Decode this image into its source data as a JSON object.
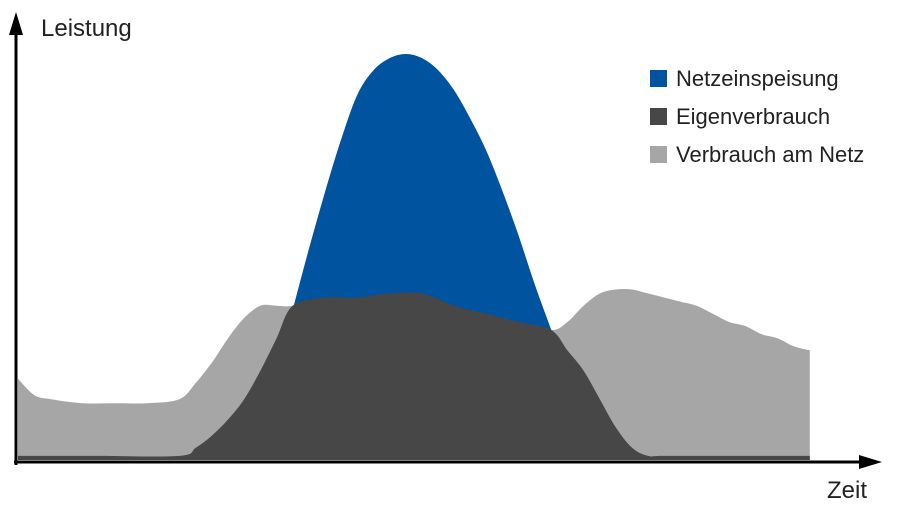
{
  "chart_data": {
    "type": "area",
    "ylabel": "Leistung",
    "xlabel": "Zeit",
    "legend_position": "top-right",
    "grid": false,
    "xlim": [
      0,
      100
    ],
    "ylim": [
      0,
      100
    ],
    "series": [
      {
        "name": "Netzeinspeisung",
        "color": "#00539f",
        "role": "overlay-area",
        "x": [
          34,
          36,
          38,
          40,
          42,
          44,
          46,
          48,
          50,
          52,
          54,
          56,
          58,
          60,
          62,
          64,
          66,
          68,
          70
        ],
        "values": [
          37,
          52,
          66,
          79,
          90,
          96,
          99,
          100,
          99,
          96,
          91,
          84,
          76,
          66,
          55,
          43,
          32,
          21,
          10
        ]
      },
      {
        "name": "Eigenverbrauch",
        "color": "#474747",
        "role": "self-consumption",
        "x": [
          0,
          10,
          20,
          22,
          24,
          26,
          28,
          30,
          32,
          34,
          38,
          42,
          46,
          50,
          54,
          58,
          62,
          66,
          68,
          70,
          72,
          74,
          76,
          78,
          80,
          90,
          98
        ],
        "values": [
          1,
          1,
          1,
          3,
          6,
          10,
          15,
          22,
          30,
          38,
          40,
          40,
          41,
          41,
          38,
          36,
          34,
          32,
          27,
          22,
          15,
          8,
          3,
          1,
          1,
          1,
          1
        ]
      },
      {
        "name": "Verbrauch am Netz",
        "color": "#a6a6a6",
        "role": "total-consumption",
        "x": [
          0,
          2,
          4,
          8,
          12,
          16,
          20,
          22,
          24,
          26,
          28,
          30,
          32,
          34,
          38,
          42,
          46,
          50,
          54,
          58,
          62,
          66,
          68,
          70,
          72,
          74,
          76,
          78,
          80,
          82,
          84,
          86,
          88,
          90,
          92,
          94,
          96,
          98
        ],
        "values": [
          20,
          16,
          15,
          14,
          14,
          14,
          15,
          19,
          24,
          30,
          35,
          38,
          38,
          38,
          40,
          40,
          41,
          41,
          38,
          36,
          34,
          32,
          34,
          38,
          41,
          42,
          42,
          41,
          40,
          39,
          38,
          36,
          34,
          33,
          31,
          30,
          28,
          27
        ]
      }
    ]
  }
}
